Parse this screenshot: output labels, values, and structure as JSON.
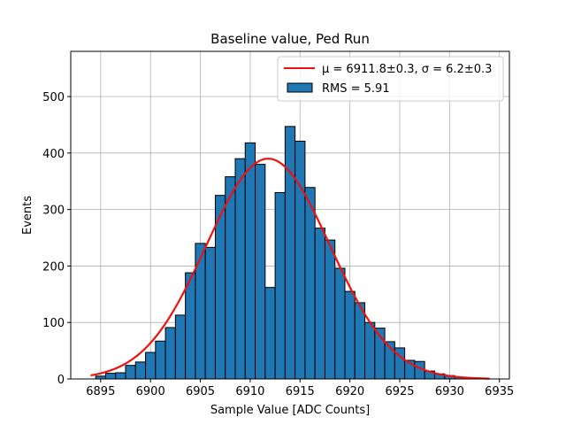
{
  "chart_data": {
    "type": "bar",
    "subtype": "histogram",
    "title": "Baseline value, Ped Run",
    "xlabel": "Sample Value [ADC Counts]",
    "ylabel": "Events",
    "xlim": [
      6892,
      6936
    ],
    "ylim": [
      0,
      580
    ],
    "xticks": [
      6895,
      6900,
      6905,
      6910,
      6915,
      6920,
      6925,
      6930,
      6935
    ],
    "yticks": [
      0,
      100,
      200,
      300,
      400,
      500
    ],
    "grid": true,
    "legend_position": "top-right",
    "bin_start": 6894.5,
    "bin_width": 1,
    "values": [
      5,
      10,
      11,
      24,
      30,
      47,
      67,
      91,
      113,
      188,
      240,
      233,
      325,
      358,
      390,
      418,
      380,
      162,
      330,
      447,
      421,
      339,
      267,
      246,
      196,
      155,
      135,
      100,
      90,
      66,
      55,
      33,
      31,
      14,
      9,
      6,
      3
    ],
    "fit": {
      "name": "Gaussian fit",
      "mu": 6911.8,
      "sigma": 6.2,
      "amplitude": 390,
      "x_range": [
        6894,
        6934
      ]
    },
    "series": [
      {
        "name": "fit",
        "label": "μ = 6911.8±0.3, σ = 6.2±0.3",
        "color": "#ee1111"
      },
      {
        "name": "histogram",
        "label": "RMS = 5.91",
        "color": "#1f77b4"
      }
    ]
  }
}
